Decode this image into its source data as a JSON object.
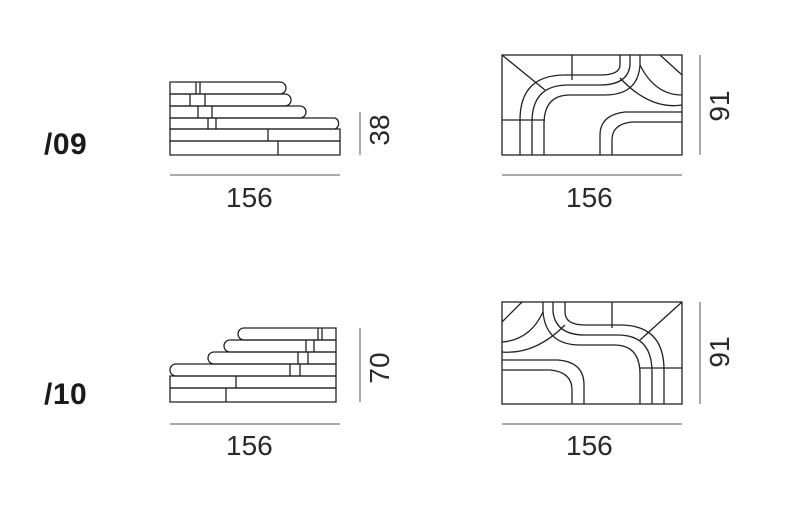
{
  "modules": [
    {
      "code": "/09",
      "front_width": "156",
      "front_height": "38",
      "top_width": "156",
      "top_depth": "91"
    },
    {
      "code": "/10",
      "front_width": "156",
      "front_height": "70",
      "top_width": "156",
      "top_depth": "91"
    }
  ],
  "colors": {
    "line": "#222222",
    "dimension": "#555555",
    "background": "#ffffff"
  }
}
